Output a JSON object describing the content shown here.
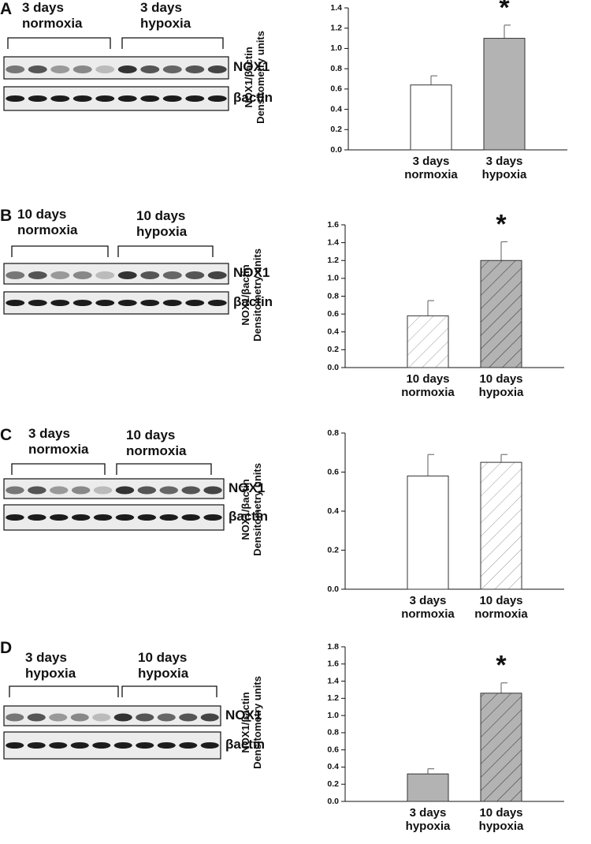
{
  "panels": [
    {
      "label": "A",
      "blot": {
        "groups": [
          "3 days normoxia",
          "3 days hypoxia"
        ],
        "rows": [
          "NOX1",
          "βactin"
        ]
      }
    },
    {
      "label": "B",
      "blot": {
        "groups": [
          "10 days normoxia",
          "10 days hypoxia"
        ],
        "rows": [
          "NOX1",
          "βactin"
        ]
      }
    },
    {
      "label": "C",
      "blot": {
        "groups": [
          "3 days normoxia",
          "10 days normoxia"
        ],
        "rows": [
          "NOX1",
          "βactin"
        ]
      }
    },
    {
      "label": "D",
      "blot": {
        "groups": [
          "3 days hypoxia",
          "10 days hypoxia"
        ],
        "rows": [
          "NOX1",
          "βactin"
        ]
      }
    }
  ],
  "chart_data": [
    {
      "type": "bar",
      "ylabel": "NOX1/βactin Densitometry units",
      "categories": [
        "3 days normoxia",
        "3 days hypoxia"
      ],
      "values": [
        0.64,
        1.1
      ],
      "errors": [
        0.09,
        0.13
      ],
      "colors": [
        "#ffffff",
        "#b3b3b3"
      ],
      "hatch": [
        false,
        false
      ],
      "annotations": [
        null,
        "*"
      ],
      "ylim": [
        0,
        1.4
      ],
      "yticks": [
        {
          "value": 0,
          "label": "0.0"
        },
        0.2,
        0.4,
        0.6,
        0.8,
        {
          "value": 1,
          "label": "1.0"
        },
        1.2,
        1.4
      ]
    },
    {
      "type": "bar",
      "ylabel": "NOX1/βactin Densitometry units",
      "categories": [
        "10 days normoxia",
        "10 days hypoxia"
      ],
      "values": [
        0.58,
        1.2
      ],
      "errors": [
        0.17,
        0.21
      ],
      "colors": [
        "#ffffff",
        "#b3b3b3"
      ],
      "hatch": [
        true,
        true
      ],
      "annotations": [
        null,
        "*"
      ],
      "ylim": [
        0,
        1.6
      ],
      "yticks": [
        {
          "value": 0,
          "label": "0.0"
        },
        0.2,
        0.4,
        0.6,
        0.8,
        {
          "value": 1,
          "label": "1.0"
        },
        1.2,
        1.4,
        1.6
      ]
    },
    {
      "type": "bar",
      "ylabel": "NOX1/βactin Densitometry units",
      "categories": [
        "3 days normoxia",
        "10 days normoxia"
      ],
      "values": [
        0.58,
        0.65
      ],
      "errors": [
        0.11,
        0.04
      ],
      "colors": [
        "#ffffff",
        "#ffffff"
      ],
      "hatch": [
        false,
        true
      ],
      "annotations": [
        null,
        null
      ],
      "ylim": [
        0,
        0.8
      ],
      "yticks": [
        {
          "value": 0,
          "label": "0.0"
        },
        0.2,
        0.4,
        0.6,
        0.8
      ]
    },
    {
      "type": "bar",
      "ylabel": "NOX1/βactin Densitometry units",
      "categories": [
        "3 days hypoxia",
        "10 days hypoxia"
      ],
      "values": [
        0.32,
        1.26
      ],
      "errors": [
        0.06,
        0.12
      ],
      "colors": [
        "#b3b3b3",
        "#b3b3b3"
      ],
      "hatch": [
        false,
        true
      ],
      "annotations": [
        null,
        "*"
      ],
      "ylim": [
        0,
        1.8
      ],
      "yticks": [
        {
          "value": 0,
          "label": "0.0"
        },
        0.2,
        0.4,
        0.6,
        0.8,
        {
          "value": 1,
          "label": "1.0"
        },
        1.2,
        1.4,
        1.6,
        1.8
      ]
    }
  ]
}
